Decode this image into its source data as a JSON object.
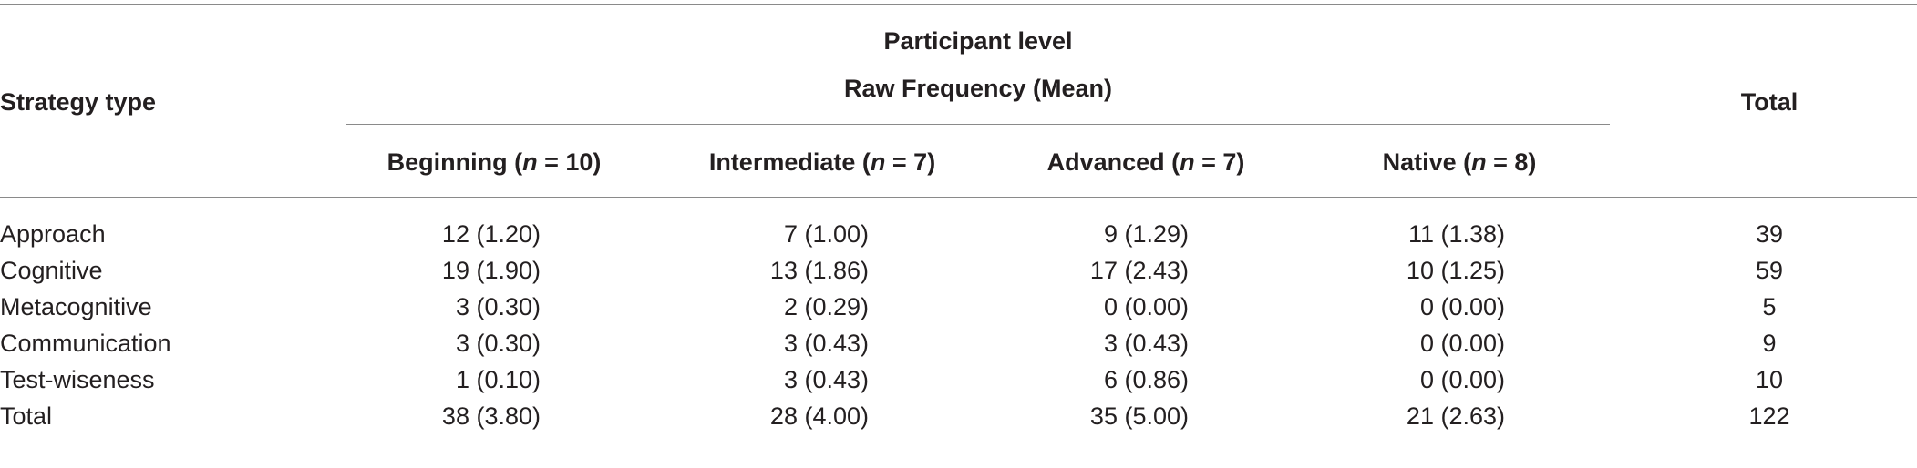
{
  "table": {
    "header": {
      "strategy_type": "Strategy type",
      "participant_level": "Participant level",
      "raw_frequency": "Raw Frequency (Mean)",
      "total": "Total",
      "groups": [
        {
          "label": "Beginning",
          "n": "10"
        },
        {
          "label": "Intermediate",
          "n": "7"
        },
        {
          "label": "Advanced",
          "n": "7"
        },
        {
          "label": "Native",
          "n": "8"
        }
      ]
    },
    "rows": [
      {
        "label": "Approach",
        "values": [
          "12 (1.20)",
          "7 (1.00)",
          "9 (1.29)",
          "11 (1.38)"
        ],
        "total": "39"
      },
      {
        "label": "Cognitive",
        "values": [
          "19 (1.90)",
          "13 (1.86)",
          "17 (2.43)",
          "10 (1.25)"
        ],
        "total": "59"
      },
      {
        "label": "Metacognitive",
        "values": [
          "3 (0.30)",
          "2 (0.29)",
          "0 (0.00)",
          "0 (0.00)"
        ],
        "total": "5"
      },
      {
        "label": "Communication",
        "values": [
          "3 (0.30)",
          "3 (0.43)",
          "3 (0.43)",
          "0 (0.00)"
        ],
        "total": "9"
      },
      {
        "label": "Test-wiseness",
        "values": [
          "1 (0.10)",
          "3 (0.43)",
          "6 (0.86)",
          "0 (0.00)"
        ],
        "total": "10"
      },
      {
        "label": "Total",
        "values": [
          "38 (3.80)",
          "28 (4.00)",
          "35 (5.00)",
          "21 (2.63)"
        ],
        "total": "122"
      }
    ]
  }
}
